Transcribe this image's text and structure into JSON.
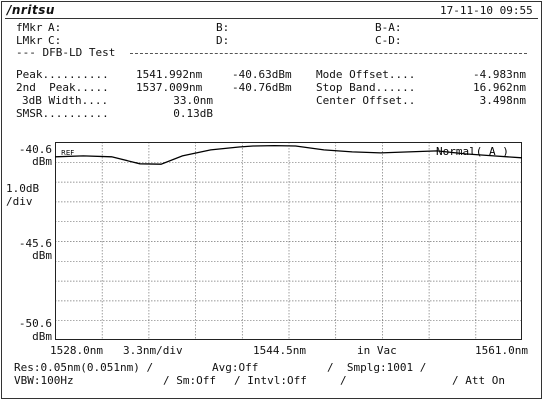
{
  "header": {
    "brand": "/nritsu",
    "datetime": "17-11-10 09:55"
  },
  "markers": {
    "fmkr_label": "fMkr",
    "fmkr_a": "A:",
    "fmkr_b": "B:",
    "fmkr_ba": "B-A:",
    "lmkr_label": "LMkr",
    "lmkr_c": "C:",
    "lmkr_d": "D:",
    "lmkr_cd": "C-D:"
  },
  "analysis": {
    "title": "--- DFB-LD Test",
    "peak_label": "Peak..........",
    "peak_wl": "1541.992nm",
    "peak_lvl": "-40.63dBm",
    "mode_offset_label": "Mode Offset....",
    "mode_offset_val": "-4.983nm",
    "second_label": "2nd  Peak.....",
    "second_wl": "1537.009nm",
    "second_lvl": "-40.76dBm",
    "stop_band_label": "Stop Band......",
    "stop_band_val": "16.962nm",
    "width_label": "3dB Width....",
    "width_val": "33.0nm",
    "center_offset_label": "Center Offset..",
    "center_offset_val": "3.498nm",
    "smsr_label": "SMSR..........",
    "smsr_val": "0.13dB"
  },
  "graph": {
    "ref_level": "-40.6",
    "ref_unit": "dBm",
    "ref_tag": "REF",
    "scale": "1.0dB",
    "scale_unit": "/div",
    "mid_level": "-45.6",
    "mid_unit": "dBm",
    "low_level": "-50.6",
    "low_unit": "dBm",
    "mode_label": "Normal( A )",
    "x_start": "1528.0nm",
    "x_div": "3.3nm/div",
    "x_center": "1544.5nm",
    "x_medium": "in Vac",
    "x_stop": "1561.0nm"
  },
  "chart_data": {
    "type": "line",
    "x_range": [
      1528.0,
      1561.0
    ],
    "ylim": [
      -50.6,
      -40.6
    ],
    "grid": true,
    "series": [
      {
        "x": [
          1528.0,
          1530.0,
          1532.0,
          1534.0,
          1535.5,
          1537.0,
          1539.0,
          1541.0,
          1542.0,
          1543.5,
          1545.0,
          1547.0,
          1549.0,
          1551.0,
          1553.0,
          1555.0,
          1557.0,
          1559.0,
          1561.0
        ],
        "y": [
          -41.35,
          -41.3,
          -41.35,
          -41.7,
          -41.72,
          -41.3,
          -41.0,
          -40.85,
          -40.8,
          -40.78,
          -40.8,
          -41.0,
          -41.1,
          -41.15,
          -41.1,
          -41.05,
          -41.2,
          -41.3,
          -41.4
        ]
      }
    ]
  },
  "settings": {
    "res": "Res:0.05nm(0.051nm) /",
    "avg": "Avg:Off",
    "smplg": "/  Smplg:1001 /",
    "vbw": "VBW:100Hz",
    "sm": "/ Sm:Off",
    "intvl": "/ Intvl:Off",
    "sep": "/",
    "att": "/ Att On"
  }
}
